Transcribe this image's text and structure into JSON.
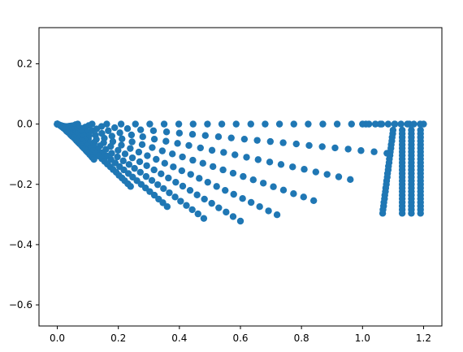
{
  "chart_data": {
    "type": "scatter",
    "title": "",
    "xlabel": "",
    "ylabel": "",
    "xlim": [
      -0.06,
      1.26
    ],
    "ylim": [
      -0.67,
      0.32
    ],
    "xticks": [
      0.0,
      0.2,
      0.4,
      0.6,
      0.8,
      1.0,
      1.2
    ],
    "yticks": [
      0.2,
      0.0,
      -0.2,
      -0.4,
      -0.6
    ],
    "xtick_labels": [
      "0.0",
      "0.2",
      "0.4",
      "0.6",
      "0.8",
      "1.0",
      "1.2"
    ],
    "ytick_labels": [
      "0.2",
      "0.0",
      "−0.2",
      "−0.4",
      "−0.6"
    ],
    "grid": false,
    "marker_color": "#1f77b4",
    "point_summary": "Fan-shaped family of curved point rows, from the origin (0,0) sweeping to about x=1.21; rows span y from 0 down to about -0.35, with points densely clustered near x=1.05–1.21.",
    "series": [
      {
        "values": []
      }
    ]
  }
}
